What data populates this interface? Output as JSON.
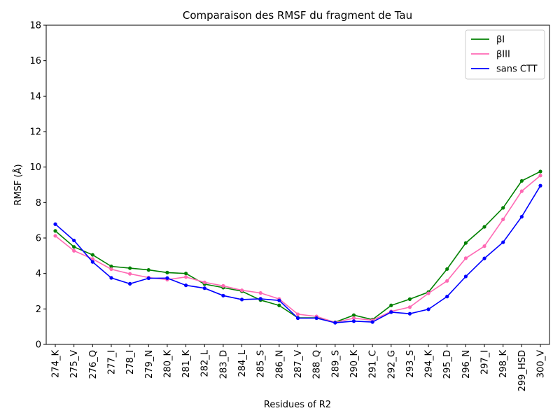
{
  "chart_data": {
    "type": "line",
    "title": "Comparaison des RMSF du fragment de Tau",
    "xlabel": "Residues of R2",
    "ylabel": "RMSF (Å)",
    "ylim": [
      0,
      18
    ],
    "yticks": [
      0,
      2,
      4,
      6,
      8,
      10,
      12,
      14,
      16,
      18
    ],
    "grid": false,
    "legend_position": "top-right",
    "categories": [
      "274_K",
      "275_V",
      "276_Q",
      "277_I",
      "278_I",
      "279_N",
      "280_K",
      "281_K",
      "282_L",
      "283_D",
      "284_L",
      "285_S",
      "286_N",
      "287_V",
      "288_Q",
      "289_S",
      "290_K",
      "291_C",
      "292_G",
      "293_S",
      "294_K",
      "295_D",
      "296_N",
      "297_I",
      "298_K",
      "299_HSD",
      "300_V"
    ],
    "highlighted_categories": [
      "285_S",
      "289_S",
      "293_S"
    ],
    "highlight_color": "#008000",
    "series": [
      {
        "name": "βI",
        "color": "#008000",
        "values": [
          6.4,
          5.5,
          5.05,
          4.4,
          4.3,
          4.2,
          4.05,
          4.0,
          3.4,
          3.2,
          3.0,
          2.5,
          2.2,
          1.5,
          1.5,
          1.25,
          1.65,
          1.4,
          2.2,
          2.55,
          2.95,
          4.25,
          5.72,
          6.63,
          7.7,
          9.22,
          9.75
        ]
      },
      {
        "name": "βIII",
        "color": "#ff69b4",
        "values": [
          6.12,
          5.28,
          4.82,
          4.24,
          3.98,
          3.77,
          3.65,
          3.8,
          3.5,
          3.3,
          3.05,
          2.9,
          2.56,
          1.7,
          1.58,
          1.24,
          1.48,
          1.36,
          1.86,
          2.1,
          2.88,
          3.58,
          4.86,
          5.54,
          7.05,
          8.64,
          9.52
        ]
      },
      {
        "name": "sans CTT",
        "color": "#0000ff",
        "values": [
          6.78,
          5.86,
          4.65,
          3.75,
          3.42,
          3.73,
          3.74,
          3.33,
          3.17,
          2.75,
          2.53,
          2.57,
          2.48,
          1.48,
          1.48,
          1.22,
          1.31,
          1.26,
          1.82,
          1.73,
          1.98,
          2.7,
          3.83,
          4.85,
          5.76,
          7.2,
          8.95
        ]
      }
    ]
  }
}
